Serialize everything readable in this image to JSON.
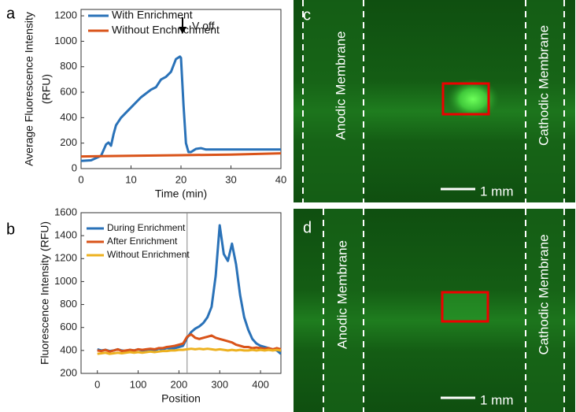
{
  "chart_data": [
    {
      "type": "line",
      "panel_label": "a",
      "xlabel": "Time (min)",
      "ylabel": [
        "Average Fluorescence Intensity",
        "(RFU)"
      ],
      "annotation": "V off",
      "xlim": [
        0,
        40
      ],
      "xticks": [
        0,
        10,
        20,
        30,
        40
      ],
      "ylim": [
        0,
        1250
      ],
      "yticks": [
        0,
        200,
        400,
        600,
        800,
        1000,
        1200
      ],
      "series": [
        {
          "name": "With Enrichment",
          "color": "#2a72b8",
          "x": [
            0,
            2,
            4,
            5,
            5.5,
            6,
            6.5,
            7,
            8,
            10,
            12,
            14,
            15,
            16,
            17,
            18,
            19,
            19.8,
            20,
            20.5,
            21,
            21.5,
            22,
            23,
            24,
            25,
            30,
            40
          ],
          "values": [
            60,
            65,
            100,
            190,
            205,
            180,
            270,
            340,
            400,
            480,
            560,
            620,
            640,
            700,
            720,
            760,
            860,
            880,
            870,
            500,
            200,
            130,
            130,
            155,
            160,
            150,
            150,
            150
          ]
        },
        {
          "name": "Without Enchrichment",
          "color": "#d95319",
          "x": [
            0,
            10,
            20,
            30,
            40
          ],
          "values": [
            95,
            100,
            105,
            110,
            120
          ]
        }
      ]
    },
    {
      "type": "line",
      "panel_label": "b",
      "xlabel": "Position",
      "ylabel": [
        "Fluorescence Intensity (RFU)"
      ],
      "vline": 220,
      "xlim": [
        -40,
        450
      ],
      "xticks": [
        0,
        100,
        200,
        300,
        400
      ],
      "ylim": [
        200,
        1600
      ],
      "yticks": [
        200,
        400,
        600,
        800,
        1000,
        1200,
        1400,
        1600
      ],
      "x": [
        0,
        10,
        20,
        30,
        40,
        50,
        60,
        70,
        80,
        90,
        100,
        110,
        120,
        130,
        140,
        150,
        160,
        170,
        180,
        190,
        200,
        210,
        220,
        230,
        240,
        250,
        260,
        270,
        280,
        290,
        300,
        310,
        320,
        330,
        340,
        350,
        360,
        370,
        380,
        390,
        400,
        410,
        420,
        430,
        440,
        450
      ],
      "series": [
        {
          "name": "During Enrichment",
          "color": "#2a72b8",
          "values": [
            410,
            400,
            405,
            395,
            400,
            410,
            400,
            395,
            405,
            400,
            410,
            400,
            405,
            410,
            400,
            415,
            410,
            420,
            415,
            420,
            430,
            440,
            510,
            560,
            590,
            610,
            640,
            690,
            780,
            1050,
            1490,
            1240,
            1180,
            1330,
            1150,
            880,
            690,
            580,
            500,
            460,
            440,
            430,
            420,
            410,
            400,
            370
          ]
        },
        {
          "name": "After Enrichment",
          "color": "#d95319",
          "values": [
            400,
            395,
            405,
            390,
            400,
            410,
            395,
            400,
            405,
            400,
            410,
            405,
            410,
            415,
            410,
            420,
            420,
            430,
            435,
            440,
            450,
            460,
            520,
            540,
            510,
            500,
            510,
            520,
            530,
            510,
            500,
            490,
            480,
            470,
            450,
            440,
            430,
            430,
            420,
            425,
            420,
            415,
            420,
            410,
            420,
            410
          ]
        },
        {
          "name": "Without Enrichment",
          "color": "#edb120",
          "values": [
            370,
            375,
            380,
            370,
            375,
            380,
            375,
            380,
            385,
            380,
            385,
            380,
            385,
            390,
            385,
            390,
            395,
            395,
            400,
            400,
            405,
            405,
            410,
            415,
            410,
            415,
            410,
            415,
            410,
            405,
            410,
            405,
            400,
            405,
            400,
            405,
            400,
            400,
            405,
            400,
            405,
            400,
            405,
            400,
            405,
            400
          ]
        }
      ]
    }
  ],
  "images": [
    {
      "label": "c",
      "left_text": "Anodic Membrane",
      "right_text": "Cathodic Membrane",
      "scale": "1 mm"
    },
    {
      "label": "d",
      "left_text": "Anodic Membrane",
      "right_text": "Cathodic Membrane",
      "scale": "1 mm"
    }
  ]
}
